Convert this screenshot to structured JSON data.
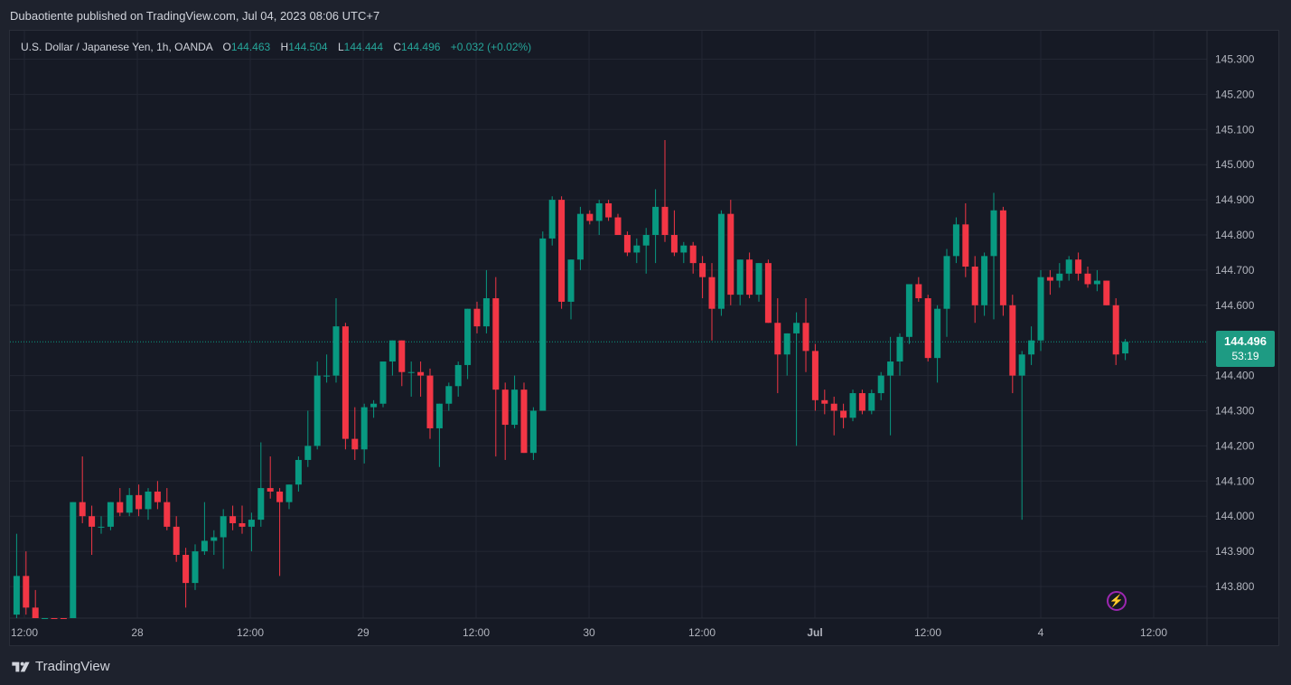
{
  "header": {
    "published_text": "Dubaotiente published on TradingView.com, Jul 04, 2023 08:06 UTC+7"
  },
  "legend": {
    "symbol": "U.S. Dollar / Japanese Yen, 1h, OANDA",
    "o_label": "O",
    "o_value": "144.463",
    "h_label": "H",
    "h_value": "144.504",
    "l_label": "L",
    "l_value": "144.444",
    "c_label": "C",
    "c_value": "144.496",
    "change": "+0.032 (+0.02%)"
  },
  "price_badge": {
    "price": "144.496",
    "countdown": "53:19"
  },
  "footer": {
    "brand": "TradingView"
  },
  "colors": {
    "up": "#089981",
    "down": "#f23645",
    "background": "#161a25",
    "grid": "#232733",
    "text": "#b2b5be"
  },
  "chart_data": {
    "type": "candlestick",
    "symbol": "USDJPY",
    "interval": "1h",
    "y_ticks": [
      "145.300",
      "145.200",
      "145.100",
      "145.000",
      "144.900",
      "144.800",
      "144.700",
      "144.600",
      "144.400",
      "144.300",
      "144.200",
      "144.100",
      "144.000",
      "143.900",
      "143.800"
    ],
    "y_range": [
      143.72,
      145.34
    ],
    "x_ticks": [
      "12:00",
      "28",
      "12:00",
      "29",
      "12:00",
      "30",
      "12:00",
      "Jul",
      "12:00",
      "4",
      "12:00"
    ],
    "current_price": 144.496,
    "candles": [
      {
        "o": 143.7,
        "h": 143.74,
        "l": 143.58,
        "c": 143.62
      },
      {
        "o": 143.72,
        "h": 143.95,
        "l": 143.7,
        "c": 143.83
      },
      {
        "o": 143.83,
        "h": 143.9,
        "l": 143.72,
        "c": 143.74
      },
      {
        "o": 143.74,
        "h": 143.79,
        "l": 143.62,
        "c": 143.7
      },
      {
        "o": 143.6,
        "h": 143.66,
        "l": 143.55,
        "c": 143.62
      },
      {
        "o": 143.62,
        "h": 143.68,
        "l": 143.58,
        "c": 143.6
      },
      {
        "o": 143.6,
        "h": 143.64,
        "l": 143.5,
        "c": 143.52
      },
      {
        "o": 143.52,
        "h": 144.04,
        "l": 143.5,
        "c": 144.04
      },
      {
        "o": 144.04,
        "h": 144.17,
        "l": 143.98,
        "c": 144.0
      },
      {
        "o": 144.0,
        "h": 144.03,
        "l": 143.89,
        "c": 143.97
      },
      {
        "o": 143.97,
        "h": 144.0,
        "l": 143.95,
        "c": 143.97
      },
      {
        "o": 143.97,
        "h": 144.04,
        "l": 143.96,
        "c": 144.04
      },
      {
        "o": 144.04,
        "h": 144.08,
        "l": 144.0,
        "c": 144.01
      },
      {
        "o": 144.01,
        "h": 144.08,
        "l": 144.0,
        "c": 144.06
      },
      {
        "o": 144.06,
        "h": 144.09,
        "l": 144.0,
        "c": 144.02
      },
      {
        "o": 144.02,
        "h": 144.08,
        "l": 143.99,
        "c": 144.07
      },
      {
        "o": 144.07,
        "h": 144.1,
        "l": 144.02,
        "c": 144.04
      },
      {
        "o": 144.04,
        "h": 144.08,
        "l": 143.96,
        "c": 143.97
      },
      {
        "o": 143.97,
        "h": 144.0,
        "l": 143.87,
        "c": 143.89
      },
      {
        "o": 143.89,
        "h": 143.91,
        "l": 143.74,
        "c": 143.81
      },
      {
        "o": 143.81,
        "h": 143.92,
        "l": 143.79,
        "c": 143.9
      },
      {
        "o": 143.9,
        "h": 144.04,
        "l": 143.89,
        "c": 143.93
      },
      {
        "o": 143.93,
        "h": 143.96,
        "l": 143.89,
        "c": 143.94
      },
      {
        "o": 143.94,
        "h": 144.02,
        "l": 143.85,
        "c": 144.0
      },
      {
        "o": 144.0,
        "h": 144.03,
        "l": 143.96,
        "c": 143.98
      },
      {
        "o": 143.98,
        "h": 144.03,
        "l": 143.95,
        "c": 143.97
      },
      {
        "o": 143.97,
        "h": 144.01,
        "l": 143.9,
        "c": 143.99
      },
      {
        "o": 143.99,
        "h": 144.21,
        "l": 143.97,
        "c": 144.08
      },
      {
        "o": 144.08,
        "h": 144.17,
        "l": 144.05,
        "c": 144.07
      },
      {
        "o": 144.07,
        "h": 144.08,
        "l": 143.83,
        "c": 144.04
      },
      {
        "o": 144.04,
        "h": 144.09,
        "l": 144.02,
        "c": 144.09
      },
      {
        "o": 144.09,
        "h": 144.17,
        "l": 144.07,
        "c": 144.16
      },
      {
        "o": 144.16,
        "h": 144.3,
        "l": 144.14,
        "c": 144.2
      },
      {
        "o": 144.2,
        "h": 144.44,
        "l": 144.19,
        "c": 144.4
      },
      {
        "o": 144.4,
        "h": 144.46,
        "l": 144.38,
        "c": 144.4
      },
      {
        "o": 144.4,
        "h": 144.62,
        "l": 144.38,
        "c": 144.54
      },
      {
        "o": 144.54,
        "h": 144.55,
        "l": 144.19,
        "c": 144.22
      },
      {
        "o": 144.22,
        "h": 144.31,
        "l": 144.16,
        "c": 144.19
      },
      {
        "o": 144.19,
        "h": 144.32,
        "l": 144.15,
        "c": 144.31
      },
      {
        "o": 144.31,
        "h": 144.33,
        "l": 144.28,
        "c": 144.32
      },
      {
        "o": 144.32,
        "h": 144.44,
        "l": 144.31,
        "c": 144.44
      },
      {
        "o": 144.44,
        "h": 144.5,
        "l": 144.4,
        "c": 144.5
      },
      {
        "o": 144.5,
        "h": 144.5,
        "l": 144.37,
        "c": 144.41
      },
      {
        "o": 144.41,
        "h": 144.44,
        "l": 144.34,
        "c": 144.41
      },
      {
        "o": 144.41,
        "h": 144.44,
        "l": 144.34,
        "c": 144.4
      },
      {
        "o": 144.4,
        "h": 144.42,
        "l": 144.22,
        "c": 144.25
      },
      {
        "o": 144.25,
        "h": 144.32,
        "l": 144.14,
        "c": 144.32
      },
      {
        "o": 144.32,
        "h": 144.38,
        "l": 144.3,
        "c": 144.37
      },
      {
        "o": 144.37,
        "h": 144.44,
        "l": 144.34,
        "c": 144.43
      },
      {
        "o": 144.43,
        "h": 144.59,
        "l": 144.39,
        "c": 144.59
      },
      {
        "o": 144.59,
        "h": 144.61,
        "l": 144.52,
        "c": 144.54
      },
      {
        "o": 144.54,
        "h": 144.7,
        "l": 144.52,
        "c": 144.62
      },
      {
        "o": 144.62,
        "h": 144.68,
        "l": 144.17,
        "c": 144.36
      },
      {
        "o": 144.36,
        "h": 144.38,
        "l": 144.16,
        "c": 144.26
      },
      {
        "o": 144.26,
        "h": 144.4,
        "l": 144.25,
        "c": 144.36
      },
      {
        "o": 144.36,
        "h": 144.38,
        "l": 144.18,
        "c": 144.18
      },
      {
        "o": 144.18,
        "h": 144.31,
        "l": 144.16,
        "c": 144.3
      },
      {
        "o": 144.3,
        "h": 144.81,
        "l": 144.3,
        "c": 144.79
      },
      {
        "o": 144.79,
        "h": 144.91,
        "l": 144.77,
        "c": 144.9
      },
      {
        "o": 144.9,
        "h": 144.91,
        "l": 144.59,
        "c": 144.61
      },
      {
        "o": 144.61,
        "h": 144.73,
        "l": 144.56,
        "c": 144.73
      },
      {
        "o": 144.73,
        "h": 144.88,
        "l": 144.7,
        "c": 144.86
      },
      {
        "o": 144.86,
        "h": 144.87,
        "l": 144.83,
        "c": 144.84
      },
      {
        "o": 144.84,
        "h": 144.9,
        "l": 144.8,
        "c": 144.89
      },
      {
        "o": 144.89,
        "h": 144.9,
        "l": 144.84,
        "c": 144.85
      },
      {
        "o": 144.85,
        "h": 144.86,
        "l": 144.8,
        "c": 144.8
      },
      {
        "o": 144.8,
        "h": 144.81,
        "l": 144.74,
        "c": 144.75
      },
      {
        "o": 144.75,
        "h": 144.79,
        "l": 144.72,
        "c": 144.77
      },
      {
        "o": 144.77,
        "h": 144.82,
        "l": 144.69,
        "c": 144.8
      },
      {
        "o": 144.8,
        "h": 144.93,
        "l": 144.72,
        "c": 144.88
      },
      {
        "o": 144.88,
        "h": 145.07,
        "l": 144.78,
        "c": 144.8
      },
      {
        "o": 144.8,
        "h": 144.87,
        "l": 144.74,
        "c": 144.75
      },
      {
        "o": 144.75,
        "h": 144.78,
        "l": 144.72,
        "c": 144.77
      },
      {
        "o": 144.77,
        "h": 144.78,
        "l": 144.69,
        "c": 144.72
      },
      {
        "o": 144.72,
        "h": 144.74,
        "l": 144.62,
        "c": 144.68
      },
      {
        "o": 144.68,
        "h": 144.72,
        "l": 144.5,
        "c": 144.59
      },
      {
        "o": 144.59,
        "h": 144.87,
        "l": 144.57,
        "c": 144.86
      },
      {
        "o": 144.86,
        "h": 144.9,
        "l": 144.6,
        "c": 144.63
      },
      {
        "o": 144.63,
        "h": 144.73,
        "l": 144.6,
        "c": 144.73
      },
      {
        "o": 144.73,
        "h": 144.75,
        "l": 144.62,
        "c": 144.63
      },
      {
        "o": 144.63,
        "h": 144.72,
        "l": 144.61,
        "c": 144.72
      },
      {
        "o": 144.72,
        "h": 144.73,
        "l": 144.55,
        "c": 144.55
      },
      {
        "o": 144.55,
        "h": 144.62,
        "l": 144.35,
        "c": 144.46
      },
      {
        "o": 144.46,
        "h": 144.52,
        "l": 144.4,
        "c": 144.52
      },
      {
        "o": 144.52,
        "h": 144.58,
        "l": 144.2,
        "c": 144.55
      },
      {
        "o": 144.55,
        "h": 144.62,
        "l": 144.41,
        "c": 144.47
      },
      {
        "o": 144.47,
        "h": 144.49,
        "l": 144.3,
        "c": 144.33
      },
      {
        "o": 144.33,
        "h": 144.36,
        "l": 144.29,
        "c": 144.32
      },
      {
        "o": 144.32,
        "h": 144.34,
        "l": 144.23,
        "c": 144.3
      },
      {
        "o": 144.3,
        "h": 144.32,
        "l": 144.25,
        "c": 144.28
      },
      {
        "o": 144.28,
        "h": 144.36,
        "l": 144.27,
        "c": 144.35
      },
      {
        "o": 144.35,
        "h": 144.36,
        "l": 144.29,
        "c": 144.3
      },
      {
        "o": 144.3,
        "h": 144.36,
        "l": 144.29,
        "c": 144.35
      },
      {
        "o": 144.35,
        "h": 144.41,
        "l": 144.33,
        "c": 144.4
      },
      {
        "o": 144.4,
        "h": 144.51,
        "l": 144.23,
        "c": 144.44
      },
      {
        "o": 144.44,
        "h": 144.52,
        "l": 144.4,
        "c": 144.51
      },
      {
        "o": 144.51,
        "h": 144.65,
        "l": 144.49,
        "c": 144.66
      },
      {
        "o": 144.66,
        "h": 144.68,
        "l": 144.61,
        "c": 144.62
      },
      {
        "o": 144.62,
        "h": 144.63,
        "l": 144.44,
        "c": 144.45
      },
      {
        "o": 144.45,
        "h": 144.6,
        "l": 144.38,
        "c": 144.59
      },
      {
        "o": 144.59,
        "h": 144.76,
        "l": 144.51,
        "c": 144.74
      },
      {
        "o": 144.74,
        "h": 144.85,
        "l": 144.72,
        "c": 144.83
      },
      {
        "o": 144.83,
        "h": 144.89,
        "l": 144.68,
        "c": 144.71
      },
      {
        "o": 144.71,
        "h": 144.74,
        "l": 144.55,
        "c": 144.6
      },
      {
        "o": 144.6,
        "h": 144.75,
        "l": 144.57,
        "c": 144.74
      },
      {
        "o": 144.74,
        "h": 144.92,
        "l": 144.56,
        "c": 144.87
      },
      {
        "o": 144.87,
        "h": 144.88,
        "l": 144.57,
        "c": 144.6
      },
      {
        "o": 144.6,
        "h": 144.63,
        "l": 144.35,
        "c": 144.4
      },
      {
        "o": 144.4,
        "h": 144.47,
        "l": 143.99,
        "c": 144.46
      },
      {
        "o": 144.46,
        "h": 144.54,
        "l": 144.43,
        "c": 144.5
      },
      {
        "o": 144.5,
        "h": 144.7,
        "l": 144.47,
        "c": 144.68
      },
      {
        "o": 144.68,
        "h": 144.7,
        "l": 144.63,
        "c": 144.67
      },
      {
        "o": 144.67,
        "h": 144.72,
        "l": 144.65,
        "c": 144.69
      },
      {
        "o": 144.69,
        "h": 144.74,
        "l": 144.67,
        "c": 144.73
      },
      {
        "o": 144.73,
        "h": 144.75,
        "l": 144.67,
        "c": 144.69
      },
      {
        "o": 144.69,
        "h": 144.71,
        "l": 144.65,
        "c": 144.66
      },
      {
        "o": 144.66,
        "h": 144.7,
        "l": 144.64,
        "c": 144.67
      },
      {
        "o": 144.67,
        "h": 144.67,
        "l": 144.6,
        "c": 144.6
      },
      {
        "o": 144.6,
        "h": 144.62,
        "l": 144.43,
        "c": 144.46
      },
      {
        "o": 144.463,
        "h": 144.504,
        "l": 144.444,
        "c": 144.496
      }
    ]
  }
}
